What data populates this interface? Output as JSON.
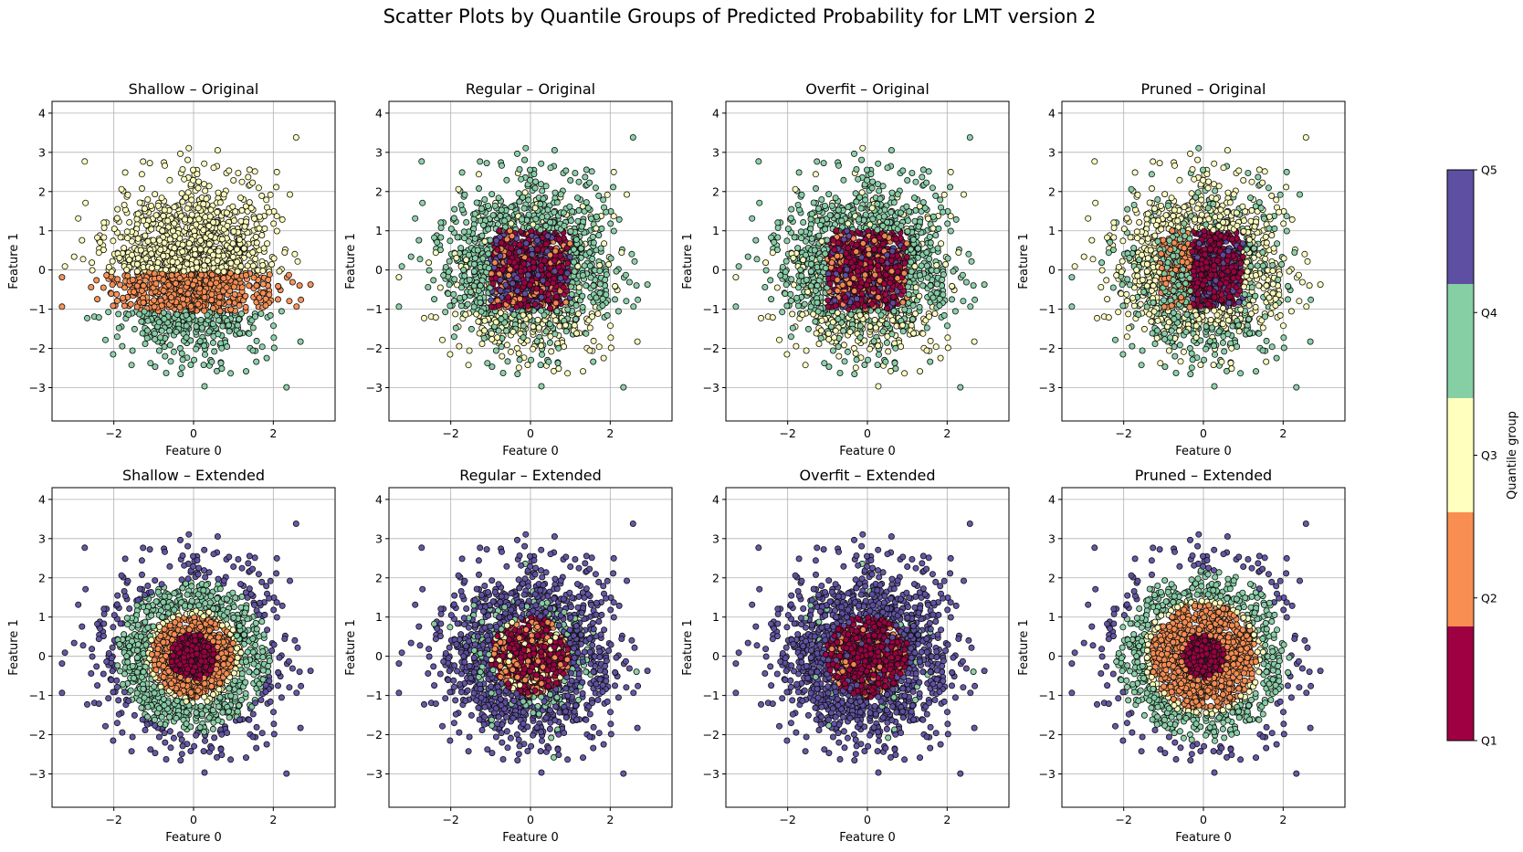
{
  "figure": {
    "title": "Scatter Plots by Quantile Groups of Predicted Probability for LMT version 2"
  },
  "colorbar": {
    "label": "Quantile group",
    "ticks": [
      "Q5",
      "Q4",
      "Q3",
      "Q2",
      "Q1"
    ],
    "colors": {
      "Q1": "#9e0142",
      "Q2": "#f98e52",
      "Q3": "#ffffbe",
      "Q4": "#86cfa5",
      "Q5": "#5e4fa2"
    }
  },
  "chart_data": [
    {
      "type": "scatter",
      "title": "Shallow – Original",
      "xlabel": "Feature 0",
      "ylabel": "Feature 1",
      "xlim": [
        -3.55,
        3.55
      ],
      "ylim": [
        -3.85,
        4.3
      ],
      "xticks": [
        "−2",
        "0",
        "2"
      ],
      "yticks": [
        "−3",
        "−2",
        "−1",
        "0",
        "1",
        "2",
        "3",
        "4"
      ],
      "grid": true,
      "pattern": "shallow-original"
    },
    {
      "type": "scatter",
      "title": "Regular – Original",
      "xlabel": "Feature 0",
      "ylabel": "Feature 1",
      "xlim": [
        -3.55,
        3.55
      ],
      "ylim": [
        -3.85,
        4.3
      ],
      "xticks": [
        "−2",
        "0",
        "2"
      ],
      "yticks": [
        "−3",
        "−2",
        "−1",
        "0",
        "1",
        "2",
        "3",
        "4"
      ],
      "grid": true,
      "pattern": "regular-original"
    },
    {
      "type": "scatter",
      "title": "Overfit – Original",
      "xlabel": "Feature 0",
      "ylabel": "Feature 1",
      "xlim": [
        -3.55,
        3.55
      ],
      "ylim": [
        -3.85,
        4.3
      ],
      "xticks": [
        "−2",
        "0",
        "2"
      ],
      "yticks": [
        "−3",
        "−2",
        "−1",
        "0",
        "1",
        "2",
        "3",
        "4"
      ],
      "grid": true,
      "pattern": "overfit-original"
    },
    {
      "type": "scatter",
      "title": "Pruned – Original",
      "xlabel": "Feature 0",
      "ylabel": "Feature 1",
      "xlim": [
        -3.55,
        3.55
      ],
      "ylim": [
        -3.85,
        4.3
      ],
      "xticks": [
        "−2",
        "0",
        "2"
      ],
      "yticks": [
        "−3",
        "−2",
        "−1",
        "0",
        "1",
        "2",
        "3",
        "4"
      ],
      "grid": true,
      "pattern": "pruned-original"
    },
    {
      "type": "scatter",
      "title": "Shallow – Extended",
      "xlabel": "Feature 0",
      "ylabel": "Feature 1",
      "xlim": [
        -3.55,
        3.55
      ],
      "ylim": [
        -3.85,
        4.3
      ],
      "xticks": [
        "−2",
        "0",
        "2"
      ],
      "yticks": [
        "−3",
        "−2",
        "−1",
        "0",
        "1",
        "2",
        "3",
        "4"
      ],
      "grid": true,
      "pattern": "shallow-extended"
    },
    {
      "type": "scatter",
      "title": "Regular – Extended",
      "xlabel": "Feature 0",
      "ylabel": "Feature 1",
      "xlim": [
        -3.55,
        3.55
      ],
      "ylim": [
        -3.85,
        4.3
      ],
      "xticks": [
        "−2",
        "0",
        "2"
      ],
      "yticks": [
        "−3",
        "−2",
        "−1",
        "0",
        "1",
        "2",
        "3",
        "4"
      ],
      "grid": true,
      "pattern": "regular-extended"
    },
    {
      "type": "scatter",
      "title": "Overfit – Extended",
      "xlabel": "Feature 0",
      "ylabel": "Feature 1",
      "xlim": [
        -3.55,
        3.55
      ],
      "ylim": [
        -3.85,
        4.3
      ],
      "xticks": [
        "−2",
        "0",
        "2"
      ],
      "yticks": [
        "−3",
        "−2",
        "−1",
        "0",
        "1",
        "2",
        "3",
        "4"
      ],
      "grid": true,
      "pattern": "overfit-extended"
    },
    {
      "type": "scatter",
      "title": "Pruned – Extended",
      "xlabel": "Feature 0",
      "ylabel": "Feature 1",
      "xlim": [
        -3.55,
        3.55
      ],
      "ylim": [
        -3.85,
        4.3
      ],
      "xticks": [
        "−2",
        "0",
        "2"
      ],
      "yticks": [
        "−3",
        "−2",
        "−1",
        "0",
        "1",
        "2",
        "3",
        "4"
      ],
      "grid": true,
      "pattern": "pruned-extended"
    }
  ]
}
